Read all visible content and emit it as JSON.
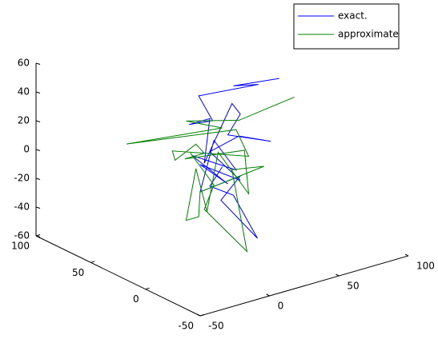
{
  "chart_data": {
    "type": "line3d",
    "xlim": [
      -50,
      100
    ],
    "xticks": [
      -50,
      0,
      50,
      100
    ],
    "ylim": [
      -50,
      100
    ],
    "yticks": [
      -50,
      0,
      50,
      100
    ],
    "zlim": [
      -60,
      60
    ],
    "zticks": [
      -60,
      -40,
      -20,
      0,
      20,
      40,
      60
    ],
    "legend": "top-right",
    "series": [
      {
        "name": "exact.",
        "color": "#0000ff",
        "x": [
          70,
          37,
          55,
          12,
          22,
          5,
          20,
          16,
          36,
          42,
          33,
          64,
          41,
          20,
          42,
          13,
          33,
          7,
          39,
          23,
          13,
          42,
          28,
          48,
          37,
          20,
          29
        ],
        "y": [
          30,
          30,
          30,
          30,
          30,
          30,
          30,
          30,
          30,
          30,
          30,
          30,
          30,
          30,
          30,
          30,
          30,
          30,
          30,
          30,
          30,
          30,
          30,
          22,
          30,
          30,
          30
        ],
        "z": [
          42,
          46,
          42,
          46,
          26,
          28,
          28,
          -2,
          34,
          25,
          13,
          0,
          10,
          5,
          -21,
          -2,
          -21,
          6,
          -13,
          12,
          -21,
          -18,
          -31,
          -60,
          -30,
          -19,
          -8
        ]
      },
      {
        "name": "approximate",
        "color": "#008000",
        "x": [
          81,
          41,
          3,
          29,
          -40,
          39,
          48,
          -7,
          -5,
          10,
          16,
          2,
          45,
          48,
          26,
          18,
          10,
          3,
          12,
          13,
          59,
          36,
          31,
          16,
          23,
          6
        ],
        "y": [
          30,
          30,
          30,
          30,
          30,
          30,
          30,
          30,
          30,
          30,
          30,
          30,
          30,
          30,
          30,
          30,
          30,
          30,
          30,
          30,
          30,
          30,
          10,
          30,
          30,
          30
        ],
        "z": [
          26,
          21,
          31,
          19,
          27,
          15,
          -6,
          13,
          6,
          13,
          5,
          5,
          -1,
          -32,
          3,
          -36,
          -4,
          -38,
          -38,
          -21,
          -16,
          -12,
          -60,
          -34,
          -19,
          8
        ]
      }
    ]
  }
}
